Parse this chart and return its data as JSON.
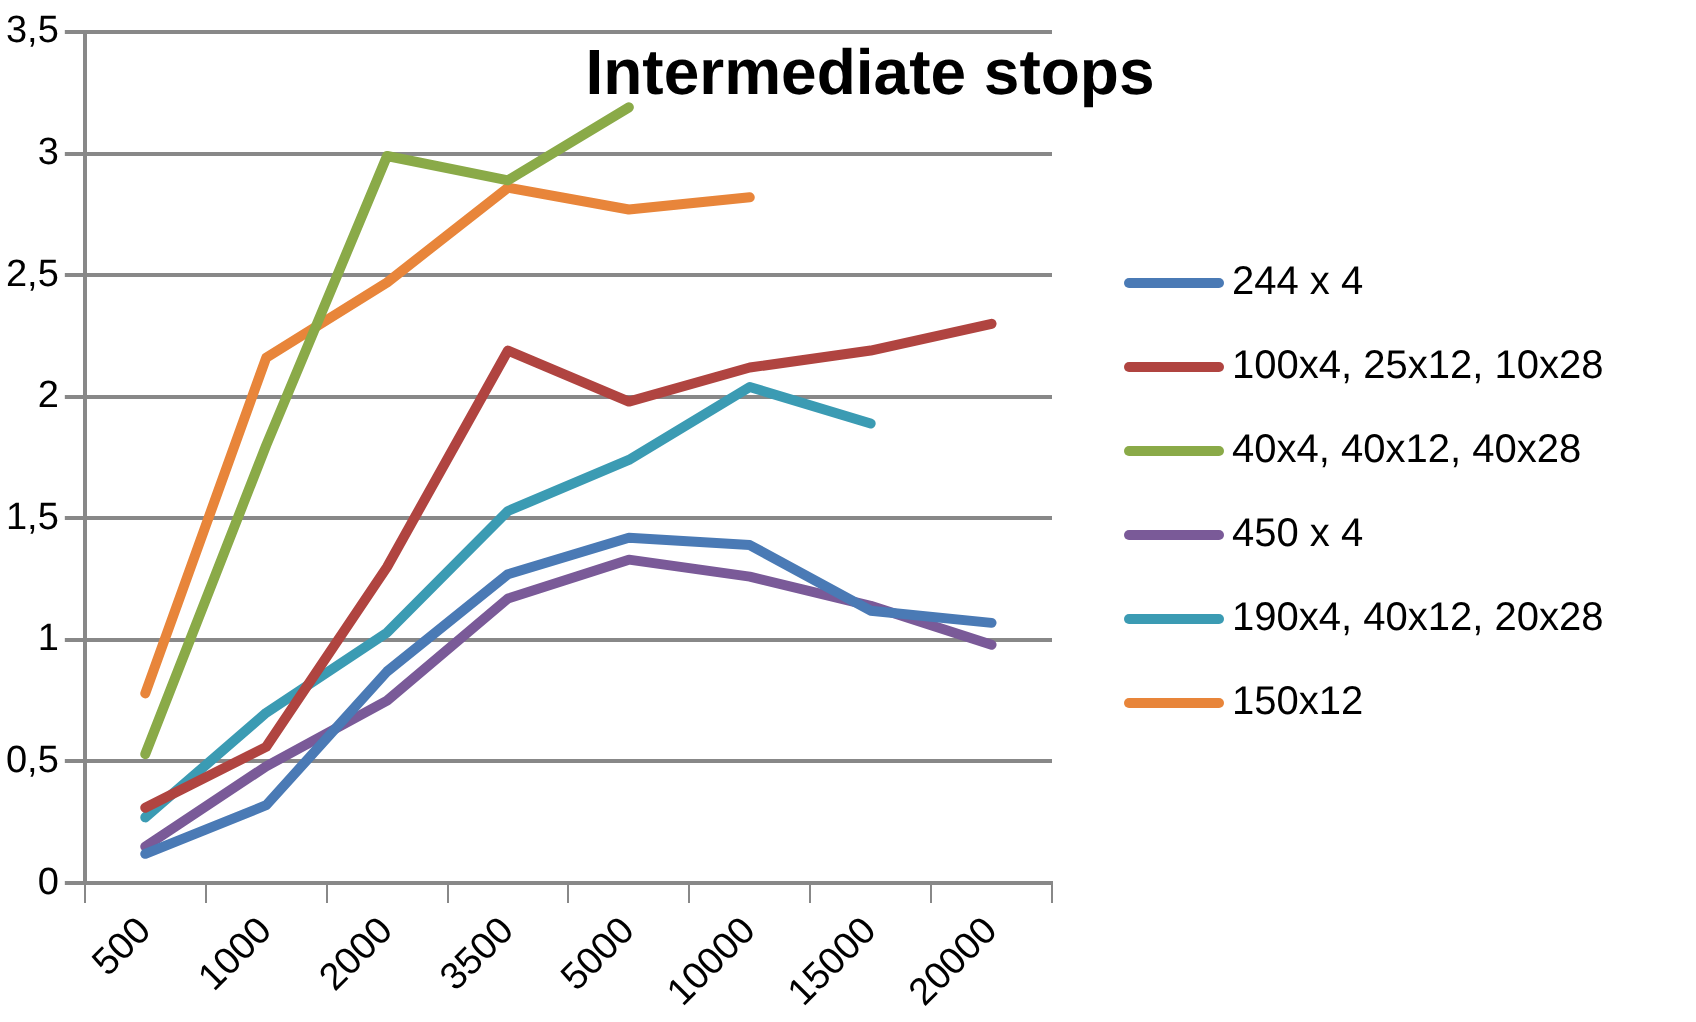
{
  "chart_data": {
    "type": "line",
    "title": "Intermediate stops",
    "categories": [
      "500",
      "1000",
      "2000",
      "3500",
      "5000",
      "10000",
      "15000",
      "20000"
    ],
    "series": [
      {
        "name": "244 x 4",
        "color": "#4a7ab5",
        "values": [
          0.12,
          0.32,
          0.87,
          1.27,
          1.42,
          1.39,
          1.12,
          1.07
        ]
      },
      {
        "name": "100x4, 25x12, 10x28",
        "color": "#b04440",
        "values": [
          0.31,
          0.56,
          1.3,
          2.19,
          1.98,
          2.12,
          2.19,
          2.3
        ]
      },
      {
        "name": "40x4, 40x12, 40x28",
        "color": "#8aaa48",
        "values": [
          0.53,
          1.8,
          2.99,
          2.89,
          3.19,
          null,
          null,
          null
        ]
      },
      {
        "name": "450 x 4",
        "color": "#7a5a98",
        "values": [
          0.15,
          0.48,
          0.75,
          1.17,
          1.33,
          1.26,
          1.14,
          0.98
        ]
      },
      {
        "name": "190x4, 40x12, 20x28",
        "color": "#3b9bb3",
        "values": [
          0.27,
          0.7,
          1.03,
          1.53,
          1.74,
          2.04,
          1.89,
          null
        ]
      },
      {
        "name": "150x12",
        "color": "#e8853a",
        "values": [
          0.78,
          2.16,
          2.47,
          2.86,
          2.77,
          2.82,
          null,
          null
        ]
      }
    ],
    "ylim": [
      0,
      3.5
    ],
    "yticks": [
      0,
      {
        "value": 0.5,
        "label": "0,5"
      },
      1,
      {
        "value": 1.5,
        "label": "1,5"
      },
      2,
      {
        "value": 2.5,
        "label": "2,5"
      },
      3,
      {
        "value": 3.5,
        "label": "3,5"
      }
    ],
    "grid": "y",
    "legend": "right",
    "marker": "none",
    "line_style": "solid"
  }
}
